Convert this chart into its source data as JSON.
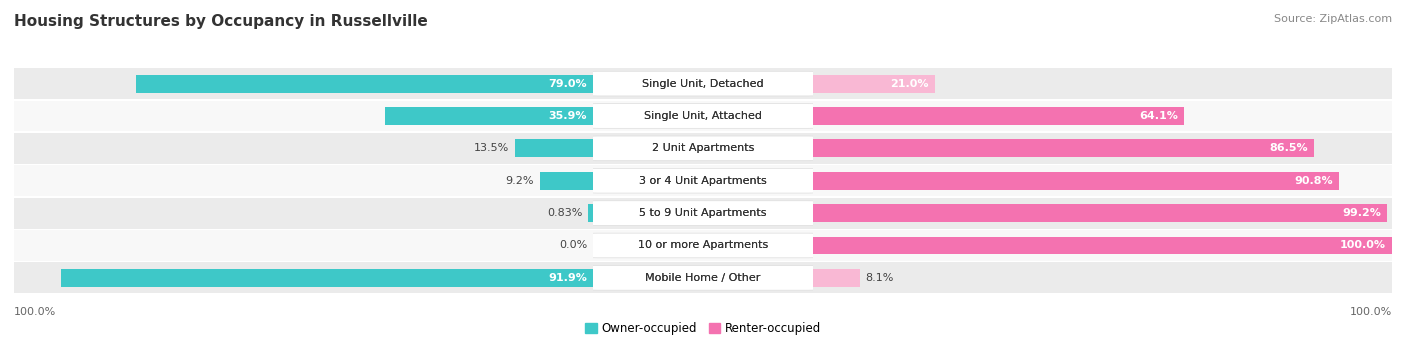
{
  "title": "Housing Structures by Occupancy in Russellville",
  "source": "Source: ZipAtlas.com",
  "categories": [
    "Single Unit, Detached",
    "Single Unit, Attached",
    "2 Unit Apartments",
    "3 or 4 Unit Apartments",
    "5 to 9 Unit Apartments",
    "10 or more Apartments",
    "Mobile Home / Other"
  ],
  "owner_values": [
    79.0,
    35.9,
    13.5,
    9.2,
    0.83,
    0.0,
    91.9
  ],
  "renter_values": [
    21.0,
    64.1,
    86.5,
    90.8,
    99.2,
    100.0,
    8.1
  ],
  "owner_color": "#3EC8C8",
  "renter_color": "#F472B0",
  "renter_color_light": "#F9B8D4",
  "bar_height": 0.58,
  "background_color": "#FFFFFF",
  "row_bg_even": "#EBEBEB",
  "row_bg_odd": "#F8F8F8",
  "title_fontsize": 11,
  "value_fontsize": 8,
  "source_fontsize": 8,
  "legend_fontsize": 8.5,
  "cat_label_fontsize": 8,
  "axis_label_fontsize": 8
}
